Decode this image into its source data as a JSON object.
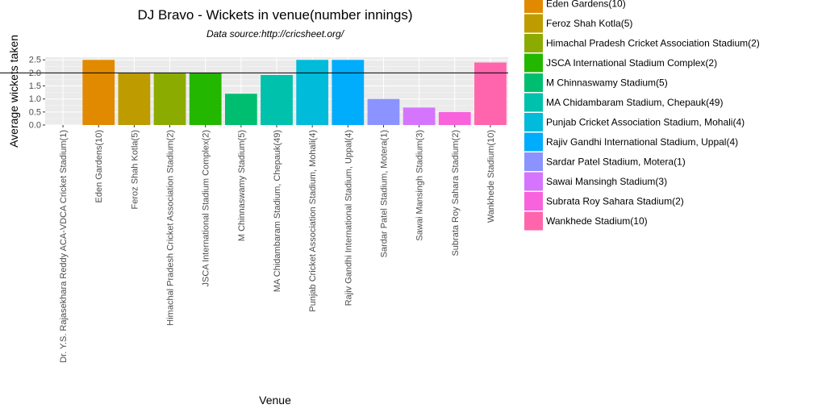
{
  "chart_data": {
    "type": "bar",
    "title": "DJ Bravo - Wickets in venue(number innings)",
    "subtitle": "Data source:http://cricsheet.org/",
    "xlabel": "Venue",
    "ylabel": "Average wickets taken",
    "ylim": [
      0,
      2.6
    ],
    "yticks": [
      "0.0",
      "0.5",
      "1.0",
      "1.5",
      "2.0",
      "2.5"
    ],
    "reference_line": 2.0,
    "grid": true,
    "legend_position": "right",
    "categories": [
      "Dr. Y.S. Rajasekhara Reddy ACA-VDCA Cricket Stadium(1)",
      "Eden Gardens(10)",
      "Feroz Shah Kotla(5)",
      "Himachal Pradesh Cricket Association Stadium(2)",
      "JSCA International Stadium Complex(2)",
      "M Chinnaswamy Stadium(5)",
      "MA Chidambaram Stadium, Chepauk(49)",
      "Punjab Cricket Association Stadium, Mohali(4)",
      "Rajiv Gandhi International Stadium, Uppal(4)",
      "Sardar Patel Stadium, Motera(1)",
      "Sawai Mansingh Stadium(3)",
      "Subrata Roy Sahara Stadium(2)",
      "Wankhede Stadium(10)"
    ],
    "values": [
      0,
      2.5,
      2.0,
      2.0,
      2.0,
      1.2,
      1.92,
      2.5,
      2.5,
      1.0,
      0.67,
      0.5,
      2.4
    ],
    "colors": [
      "#F8766D",
      "#E18A00",
      "#BE9C00",
      "#8CAB00",
      "#24B700",
      "#00BE70",
      "#00C1AB",
      "#00BBDA",
      "#00ACFC",
      "#8B93FF",
      "#D575FE",
      "#F962DD",
      "#FF65AC"
    ],
    "legend_visible": [
      "Eden Gardens(10)",
      "Feroz Shah Kotla(5)",
      "Himachal Pradesh Cricket Association Stadium(2)",
      "JSCA International Stadium Complex(2)",
      "M Chinnaswamy Stadium(5)",
      "MA Chidambaram Stadium, Chepauk(49)",
      "Punjab Cricket Association Stadium, Mohali(4)",
      "Rajiv Gandhi International Stadium, Uppal(4)",
      "Sardar Patel Stadium, Motera(1)",
      "Sawai Mansingh Stadium(3)",
      "Subrata Roy Sahara Stadium(2)",
      "Wankhede Stadium(10)"
    ]
  }
}
